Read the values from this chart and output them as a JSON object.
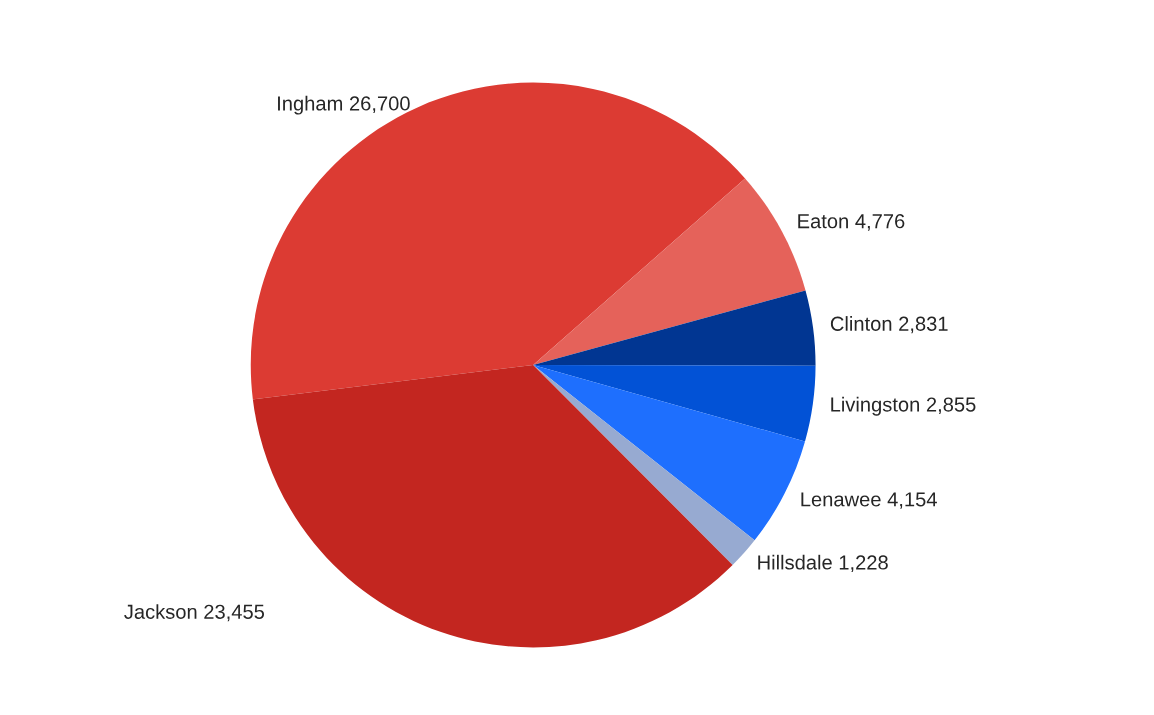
{
  "chart_data": {
    "type": "pie",
    "categories": [
      "Ingham",
      "Eaton",
      "Clinton",
      "Livingston",
      "Lenawee",
      "Hillsdale",
      "Jackson"
    ],
    "values": [
      26700,
      4776,
      2831,
      2855,
      4154,
      1228,
      23455
    ],
    "value_labels": [
      "26,700",
      "4,776",
      "2,831",
      "2,855",
      "4,154",
      "1,228",
      "23,455"
    ],
    "colors": [
      "#dc3b33",
      "#e5625a",
      "#013692",
      "#0252d6",
      "#1e6ffe",
      "#97aad1",
      "#c32620"
    ],
    "legend": false
  }
}
